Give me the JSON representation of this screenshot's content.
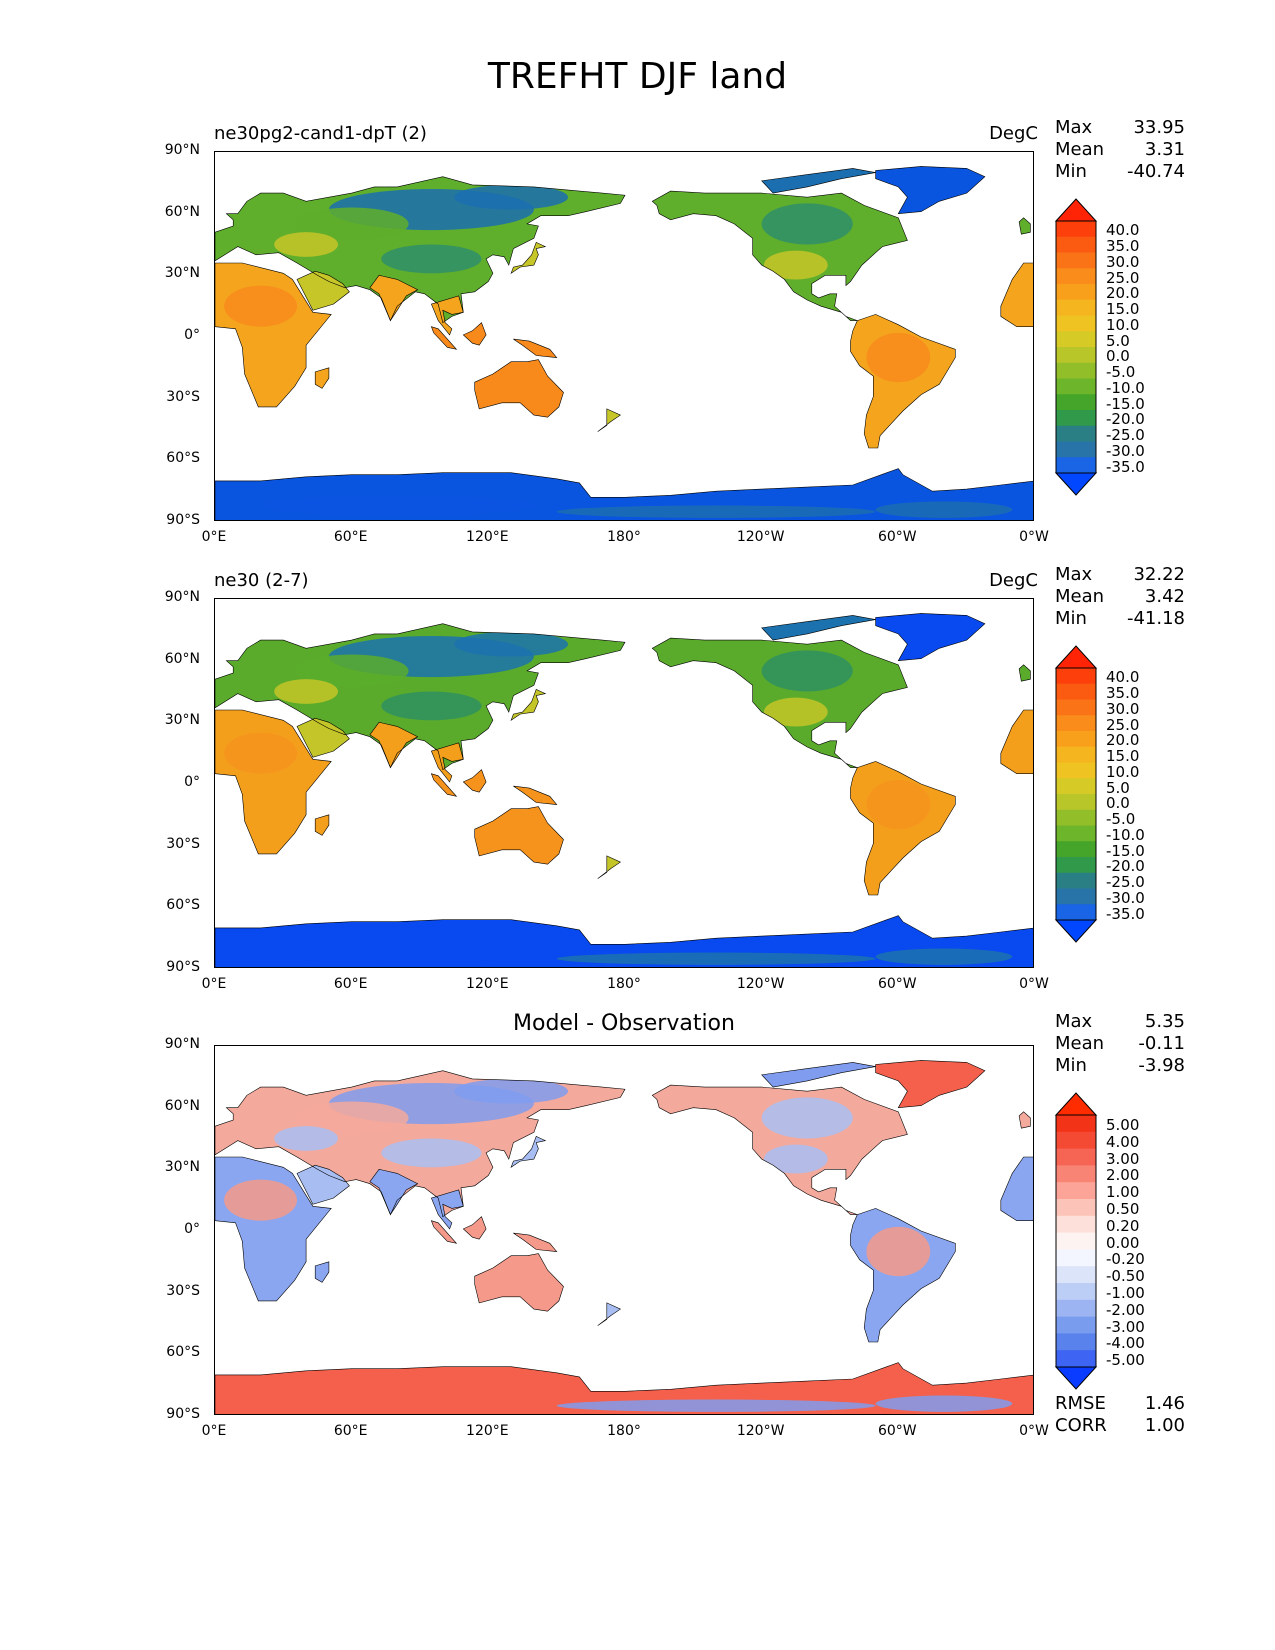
{
  "figure_title": "TREFHT DJF land",
  "panels": [
    {
      "left_title": "ne30pg2-cand1-dpT (2)",
      "right_title": "DegC",
      "center_title": "",
      "stats": [
        [
          "Max",
          "33.95"
        ],
        [
          "Mean",
          "3.31"
        ],
        [
          "Min",
          "-40.74"
        ]
      ],
      "footer": [],
      "colorbar_colors": [
        "#0047ff",
        "#1a64e6",
        "#2874a8",
        "#2a7f84",
        "#319a4a",
        "#45a52a",
        "#6db52a",
        "#92be2a",
        "#b8c62a",
        "#d6ca26",
        "#efc321",
        "#f5b51f",
        "#f8a01c",
        "#f98c1a",
        "#fa7316",
        "#fb5a11",
        "#fd3f0c",
        "#ff2406"
      ],
      "colorbar_ticks": [
        "40.0",
        "35.0",
        "30.0",
        "25.0",
        "20.0",
        "15.0",
        "10.0",
        "5.0",
        "0.0",
        "-5.0",
        "-10.0",
        "-15.0",
        "-20.0",
        "-25.0",
        "-30.0",
        "-35.0"
      ],
      "fields": {
        "cold": "#1b6fb0",
        "cool": "#2f8f6a",
        "mid": "#5fae2c",
        "mild": "#c7c629",
        "warm": "#f4a51d",
        "hot": "#f88a1b",
        "polar": "#0a55e0"
      }
    },
    {
      "left_title": "ne30 (2-7)",
      "right_title": "DegC",
      "center_title": "",
      "stats": [
        [
          "Max",
          "32.22"
        ],
        [
          "Mean",
          "3.42"
        ],
        [
          "Min",
          "-41.18"
        ]
      ],
      "footer": [],
      "colorbar_colors": [
        "#0047ff",
        "#1a64e6",
        "#2874a8",
        "#2a7f84",
        "#319a4a",
        "#45a52a",
        "#6db52a",
        "#92be2a",
        "#b8c62a",
        "#d6ca26",
        "#efc321",
        "#f5b51f",
        "#f8a01c",
        "#f98c1a",
        "#fa7316",
        "#fb5a11",
        "#fd3f0c",
        "#ff2406"
      ],
      "colorbar_ticks": [
        "40.0",
        "35.0",
        "30.0",
        "25.0",
        "20.0",
        "15.0",
        "10.0",
        "5.0",
        "0.0",
        "-5.0",
        "-10.0",
        "-15.0",
        "-20.0",
        "-25.0",
        "-30.0",
        "-35.0"
      ],
      "fields": {
        "cold": "#1c72ae",
        "cool": "#2f9060",
        "mid": "#5aab2b",
        "mild": "#c4c528",
        "warm": "#f39f1c",
        "hot": "#f6931c",
        "polar": "#0849f0"
      }
    },
    {
      "left_title": "",
      "right_title": "",
      "center_title": "Model - Observation",
      "stats": [
        [
          "Max",
          "5.35"
        ],
        [
          "Mean",
          "-0.11"
        ],
        [
          "Min",
          "-3.98"
        ]
      ],
      "footer": [
        [
          "RMSE",
          "1.46"
        ],
        [
          "CORR",
          "1.00"
        ]
      ],
      "colorbar_colors": [
        "#0a3cff",
        "#3d64f2",
        "#5a82ec",
        "#7a9cee",
        "#9cb5f2",
        "#bccdf6",
        "#dce4fa",
        "#f4f6ff",
        "#fdf3f1",
        "#fde0da",
        "#fcc3b8",
        "#fba497",
        "#f88476",
        "#f66554",
        "#f44a34",
        "#f23318",
        "#ff2c00"
      ],
      "colorbar_ticks": [
        "5.00",
        "4.00",
        "3.00",
        "2.00",
        "1.00",
        "0.50",
        "0.20",
        "0.00",
        "-0.20",
        "-0.50",
        "-1.00",
        "-2.00",
        "-3.00",
        "-4.00",
        "-5.00"
      ],
      "fields": {
        "cold": "#7f9cef",
        "cool": "#a9bff3",
        "mid": "#f3a99c",
        "mild": "#a8bef3",
        "warm": "#8aa6f0",
        "hot": "#f59a8a",
        "polar": "#f4604c"
      }
    }
  ],
  "y_ticks": [
    "90°N",
    "60°N",
    "30°N",
    "0°",
    "30°S",
    "60°S",
    "90°S"
  ],
  "x_ticks": [
    "0°E",
    "60°E",
    "120°E",
    "180°",
    "120°W",
    "60°W",
    "0°W"
  ]
}
